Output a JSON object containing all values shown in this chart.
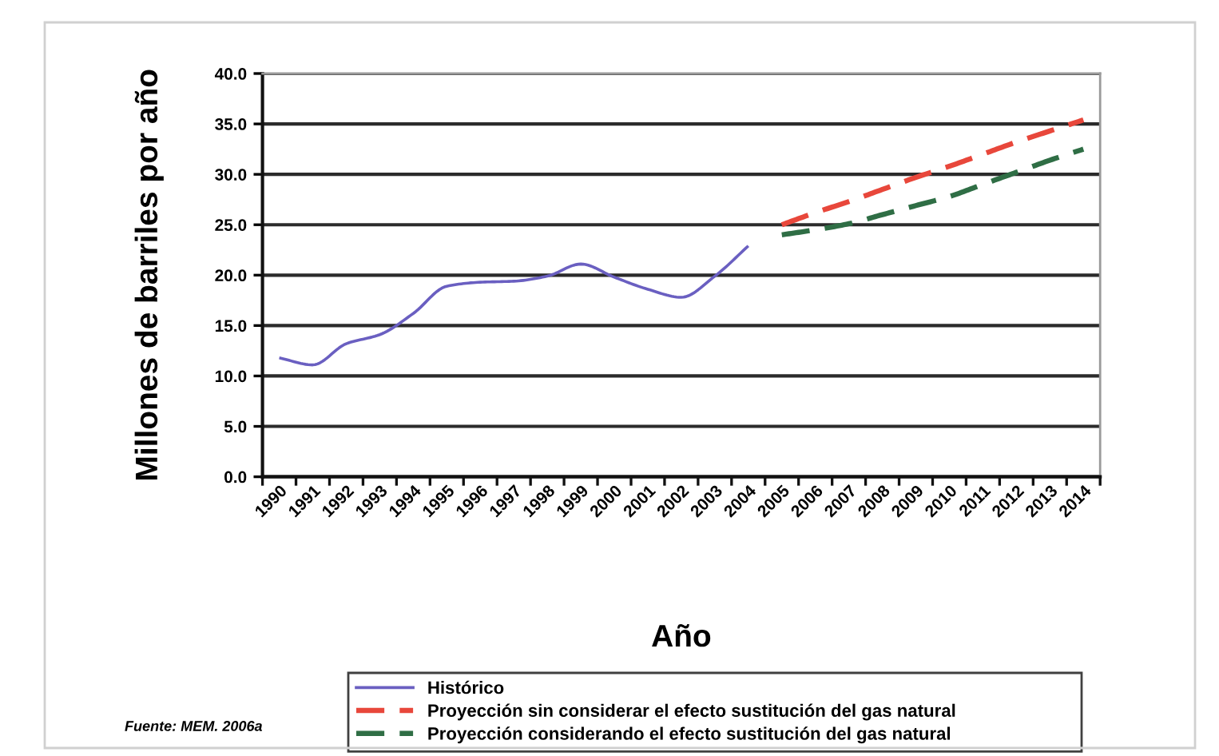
{
  "chart_data": {
    "type": "line",
    "xlabel": "Año",
    "ylabel": "Millones de barriles por año",
    "categories": [
      "1990",
      "1991",
      "1992",
      "1993",
      "1994",
      "1995",
      "1996",
      "1997",
      "1998",
      "1999",
      "2000",
      "2001",
      "2002",
      "2003",
      "2004",
      "2005",
      "2006",
      "2007",
      "2008",
      "2009",
      "2010",
      "2011",
      "2012",
      "2013",
      "2014"
    ],
    "series": [
      {
        "name": "Histórico",
        "color": "#6a5fc1",
        "line_style": "solid",
        "values": [
          11.8,
          11.1,
          13.2,
          14.1,
          16.2,
          18.9,
          19.3,
          19.4,
          19.9,
          21.1,
          19.8,
          18.6,
          17.8,
          19.9,
          22.9,
          null,
          null,
          null,
          null,
          null,
          null,
          null,
          null,
          null,
          null
        ]
      },
      {
        "name": "Proyección sin considerar el efecto sustitución del gas natural",
        "color": "#e8473b",
        "line_style": "dashed",
        "values": [
          null,
          null,
          null,
          null,
          null,
          null,
          null,
          null,
          null,
          null,
          null,
          null,
          null,
          null,
          null,
          25.0,
          26.2,
          27.3,
          28.5,
          29.7,
          30.8,
          32.0,
          33.2,
          34.3,
          35.4
        ]
      },
      {
        "name": "Proyección considerando el efecto sustitución del gas natural",
        "color": "#2f6e45",
        "line_style": "dashed",
        "values": [
          null,
          null,
          null,
          null,
          null,
          null,
          null,
          null,
          null,
          null,
          null,
          null,
          null,
          null,
          null,
          24.0,
          24.5,
          25.1,
          26.0,
          26.9,
          27.8,
          29.0,
          30.2,
          31.4,
          32.5
        ]
      }
    ],
    "ylim": [
      0,
      40
    ],
    "yticks": [
      {
        "value": 0,
        "label": "0.0"
      },
      {
        "value": 5,
        "label": "5.0"
      },
      {
        "value": 10,
        "label": "10.0"
      },
      {
        "value": 15,
        "label": "15.0"
      },
      {
        "value": 20,
        "label": "20.0"
      },
      {
        "value": 25,
        "label": "25.0"
      },
      {
        "value": 30,
        "label": "30.0"
      },
      {
        "value": 35,
        "label": "35.0"
      },
      {
        "value": 40,
        "label": "40.0"
      }
    ],
    "grid": "y",
    "legend": "bottom",
    "annotations": [
      "Fuente: MEM. 2006a"
    ]
  }
}
